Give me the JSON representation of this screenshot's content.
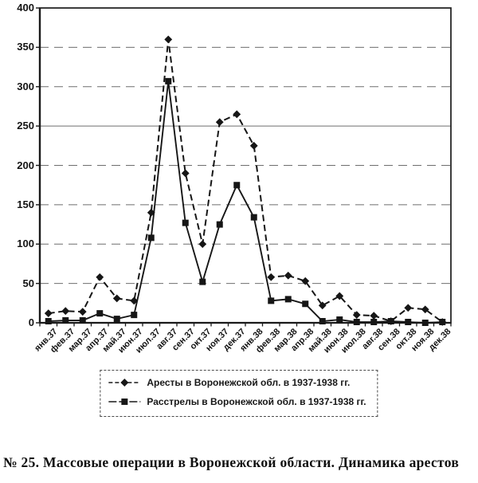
{
  "figure": {
    "caption": "№ 25. Массовые операции в Воронежской области. Динамика арестов"
  },
  "chart_data": {
    "type": "line",
    "title": "",
    "categories": [
      "янв.37",
      "фев.37",
      "мар.37",
      "апр.37",
      "май.37",
      "июн.37",
      "июл.37",
      "авг.37",
      "сен.37",
      "окт.37",
      "ноя.37",
      "дек.37",
      "янв.38",
      "фев.38",
      "мар.38",
      "апр.38",
      "май.38",
      "июн.38",
      "июл.38",
      "авг.38",
      "сен.38",
      "окт.38",
      "ноя.38",
      "дек.38"
    ],
    "series": [
      {
        "name": "Аресты в Воронежской обл. в 1937-1938 гг.",
        "marker": "diamond",
        "line_style": "dashed",
        "values": [
          12,
          15,
          14,
          58,
          31,
          28,
          140,
          360,
          190,
          100,
          255,
          265,
          225,
          58,
          60,
          53,
          22,
          34,
          10,
          9,
          2,
          19,
          17,
          1
        ]
      },
      {
        "name": "Расстрелы в Воронежской обл. в 1937-1938 гг.",
        "marker": "square",
        "line_style": "solid",
        "values": [
          2,
          3,
          3,
          12,
          5,
          10,
          108,
          307,
          127,
          52,
          125,
          175,
          134,
          28,
          30,
          24,
          2,
          4,
          1,
          1,
          2,
          1,
          0,
          1
        ]
      }
    ],
    "xlabel": "",
    "ylabel": "",
    "ylim": [
      0,
      400
    ],
    "ytick_step": 50,
    "ytick_labels": [
      "0",
      "50",
      "100",
      "150",
      "200",
      "250",
      "300",
      "350",
      "400"
    ],
    "grid": "horizontal-dashed",
    "solid_gridline_value": 250,
    "legend_position": "bottom",
    "colors": {
      "ink": "#161616",
      "background": "#ffffff"
    }
  }
}
